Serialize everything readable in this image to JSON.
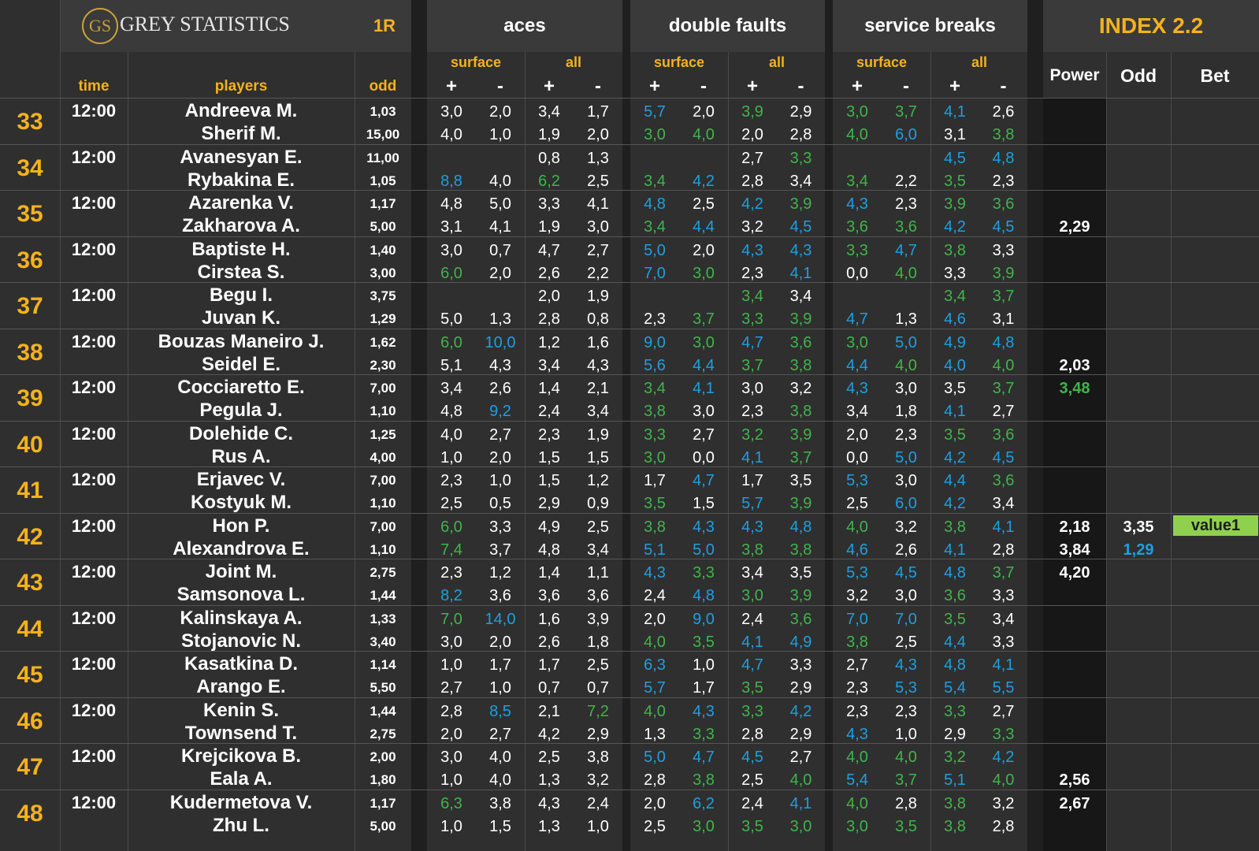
{
  "header": {
    "logo_text": "GS",
    "brand": "GREY STATISTICS",
    "round": "1R",
    "aces": "aces",
    "double_faults": "double faults",
    "service_breaks": "service breaks",
    "index_title": "INDEX 2.2",
    "surface": "surface",
    "all": "all",
    "plus": "+",
    "minus": "-",
    "time": "time",
    "players": "players",
    "odd": "odd",
    "power": "Power",
    "odd_col": "Odd",
    "bet": "Bet"
  },
  "colors": {
    "white": "#ffffff",
    "green": "#3fb54a",
    "blue": "#1e9fe0",
    "gold": "#f5b21b",
    "badge": "#8fd14f"
  },
  "matches": [
    {
      "num": "33",
      "time": "12:00",
      "p1": {
        "name": "Andreeva M.",
        "odd": "1,03",
        "stats": [
          "3,0",
          "2,0",
          "3,4",
          "1,7",
          "5,7",
          "2,0",
          "3,9",
          "2,9",
          "3,0",
          "3,7",
          "4,1",
          "2,6"
        ],
        "colors": [
          "w",
          "w",
          "w",
          "w",
          "b",
          "w",
          "g",
          "w",
          "g",
          "g",
          "b",
          "w"
        ],
        "power": "",
        "odd2": "",
        "bet": ""
      },
      "p2": {
        "name": "Sherif M.",
        "odd": "15,00",
        "stats": [
          "4,0",
          "1,0",
          "1,9",
          "2,0",
          "3,0",
          "4,0",
          "2,0",
          "2,8",
          "4,0",
          "6,0",
          "3,1",
          "3,8"
        ],
        "colors": [
          "w",
          "w",
          "w",
          "w",
          "g",
          "g",
          "w",
          "w",
          "g",
          "b",
          "w",
          "g"
        ],
        "power": "",
        "odd2": ""
      }
    },
    {
      "num": "34",
      "time": "12:00",
      "p1": {
        "name": "Avanesyan E.",
        "odd": "11,00",
        "stats": [
          "",
          "",
          "0,8",
          "1,3",
          "",
          "",
          "2,7",
          "3,3",
          "",
          "",
          "4,5",
          "4,8"
        ],
        "colors": [
          "w",
          "w",
          "w",
          "w",
          "w",
          "w",
          "w",
          "g",
          "w",
          "w",
          "b",
          "b"
        ],
        "power": "",
        "odd2": "",
        "bet": ""
      },
      "p2": {
        "name": "Rybakina E.",
        "odd": "1,05",
        "stats": [
          "8,8",
          "4,0",
          "6,2",
          "2,5",
          "3,4",
          "4,2",
          "2,8",
          "3,4",
          "3,4",
          "2,2",
          "3,5",
          "2,3"
        ],
        "colors": [
          "b",
          "w",
          "g",
          "w",
          "g",
          "b",
          "w",
          "w",
          "g",
          "w",
          "g",
          "w"
        ],
        "power": "",
        "odd2": ""
      }
    },
    {
      "num": "35",
      "time": "12:00",
      "p1": {
        "name": "Azarenka V.",
        "odd": "1,17",
        "stats": [
          "4,8",
          "5,0",
          "3,3",
          "4,1",
          "4,8",
          "2,5",
          "4,2",
          "3,9",
          "4,3",
          "2,3",
          "3,9",
          "3,6"
        ],
        "colors": [
          "w",
          "w",
          "w",
          "w",
          "b",
          "w",
          "b",
          "g",
          "b",
          "w",
          "g",
          "g"
        ],
        "power": "",
        "odd2": "",
        "bet": ""
      },
      "p2": {
        "name": "Zakharova A.",
        "odd": "5,00",
        "stats": [
          "3,1",
          "4,1",
          "1,9",
          "3,0",
          "3,4",
          "4,4",
          "3,2",
          "4,5",
          "3,6",
          "3,6",
          "4,2",
          "4,5"
        ],
        "colors": [
          "w",
          "w",
          "w",
          "w",
          "g",
          "b",
          "w",
          "b",
          "g",
          "g",
          "b",
          "b"
        ],
        "power": "2,29",
        "odd2": ""
      }
    },
    {
      "num": "36",
      "time": "12:00",
      "p1": {
        "name": "Baptiste H.",
        "odd": "1,40",
        "stats": [
          "3,0",
          "0,7",
          "4,7",
          "2,7",
          "5,0",
          "2,0",
          "4,3",
          "4,3",
          "3,3",
          "4,7",
          "3,8",
          "3,3"
        ],
        "colors": [
          "w",
          "w",
          "w",
          "w",
          "b",
          "w",
          "b",
          "b",
          "g",
          "b",
          "g",
          "w"
        ],
        "power": "",
        "odd2": "",
        "bet": ""
      },
      "p2": {
        "name": "Cirstea S.",
        "odd": "3,00",
        "stats": [
          "6,0",
          "2,0",
          "2,6",
          "2,2",
          "7,0",
          "3,0",
          "2,3",
          "4,1",
          "0,0",
          "4,0",
          "3,3",
          "3,9"
        ],
        "colors": [
          "g",
          "w",
          "w",
          "w",
          "b",
          "g",
          "w",
          "b",
          "w",
          "g",
          "w",
          "g"
        ],
        "power": "",
        "odd2": ""
      }
    },
    {
      "num": "37",
      "time": "12:00",
      "p1": {
        "name": "Begu I.",
        "odd": "3,75",
        "stats": [
          "",
          "",
          "2,0",
          "1,9",
          "",
          "",
          "3,4",
          "3,4",
          "",
          "",
          "3,4",
          "3,7"
        ],
        "colors": [
          "w",
          "w",
          "w",
          "w",
          "w",
          "w",
          "g",
          "w",
          "w",
          "w",
          "g",
          "g"
        ],
        "power": "",
        "odd2": "",
        "bet": ""
      },
      "p2": {
        "name": "Juvan K.",
        "odd": "1,29",
        "stats": [
          "5,0",
          "1,3",
          "2,8",
          "0,8",
          "2,3",
          "3,7",
          "3,3",
          "3,9",
          "4,7",
          "1,3",
          "4,6",
          "3,1"
        ],
        "colors": [
          "w",
          "w",
          "w",
          "w",
          "w",
          "g",
          "g",
          "g",
          "b",
          "w",
          "b",
          "w"
        ],
        "power": "",
        "odd2": ""
      }
    },
    {
      "num": "38",
      "time": "12:00",
      "p1": {
        "name": "Bouzas Maneiro J.",
        "odd": "1,62",
        "stats": [
          "6,0",
          "10,0",
          "1,2",
          "1,6",
          "9,0",
          "3,0",
          "4,7",
          "3,6",
          "3,0",
          "5,0",
          "4,9",
          "4,8"
        ],
        "colors": [
          "g",
          "b",
          "w",
          "w",
          "b",
          "g",
          "b",
          "g",
          "g",
          "b",
          "b",
          "b"
        ],
        "power": "",
        "odd2": "",
        "bet": ""
      },
      "p2": {
        "name": "Seidel E.",
        "odd": "2,30",
        "stats": [
          "5,1",
          "4,3",
          "3,4",
          "4,3",
          "5,6",
          "4,4",
          "3,7",
          "3,8",
          "4,4",
          "4,0",
          "4,0",
          "4,0"
        ],
        "colors": [
          "w",
          "w",
          "w",
          "w",
          "b",
          "b",
          "g",
          "g",
          "b",
          "g",
          "b",
          "g"
        ],
        "power": "2,03",
        "odd2": ""
      }
    },
    {
      "num": "39",
      "time": "12:00",
      "p1": {
        "name": "Cocciaretto E.",
        "odd": "7,00",
        "stats": [
          "3,4",
          "2,6",
          "1,4",
          "2,1",
          "3,4",
          "4,1",
          "3,0",
          "3,2",
          "4,3",
          "3,0",
          "3,5",
          "3,7"
        ],
        "colors": [
          "w",
          "w",
          "w",
          "w",
          "g",
          "b",
          "w",
          "w",
          "b",
          "w",
          "w",
          "g"
        ],
        "power": "3,48",
        "odd2": "",
        "bet": ""
      },
      "p2": {
        "name": "Pegula J.",
        "odd": "1,10",
        "stats": [
          "4,8",
          "9,2",
          "2,4",
          "3,4",
          "3,8",
          "3,0",
          "2,3",
          "3,8",
          "3,4",
          "1,8",
          "4,1",
          "2,7"
        ],
        "colors": [
          "w",
          "b",
          "w",
          "w",
          "g",
          "w",
          "w",
          "g",
          "w",
          "w",
          "b",
          "w"
        ],
        "power": "",
        "odd2": ""
      }
    },
    {
      "num": "40",
      "time": "12:00",
      "p1": {
        "name": "Dolehide C.",
        "odd": "1,25",
        "stats": [
          "4,0",
          "2,7",
          "2,3",
          "1,9",
          "3,3",
          "2,7",
          "3,2",
          "3,9",
          "2,0",
          "2,3",
          "3,5",
          "3,6"
        ],
        "colors": [
          "w",
          "w",
          "w",
          "w",
          "g",
          "w",
          "g",
          "g",
          "w",
          "w",
          "g",
          "g"
        ],
        "power": "",
        "odd2": "",
        "bet": ""
      },
      "p2": {
        "name": "Rus A.",
        "odd": "4,00",
        "stats": [
          "1,0",
          "2,0",
          "1,5",
          "1,5",
          "3,0",
          "0,0",
          "4,1",
          "3,7",
          "0,0",
          "5,0",
          "4,2",
          "4,5"
        ],
        "colors": [
          "w",
          "w",
          "w",
          "w",
          "g",
          "w",
          "b",
          "g",
          "w",
          "b",
          "b",
          "b"
        ],
        "power": "",
        "odd2": ""
      }
    },
    {
      "num": "41",
      "time": "12:00",
      "p1": {
        "name": "Erjavec V.",
        "odd": "7,00",
        "stats": [
          "2,3",
          "1,0",
          "1,5",
          "1,2",
          "1,7",
          "4,7",
          "1,7",
          "3,5",
          "5,3",
          "3,0",
          "4,4",
          "3,6"
        ],
        "colors": [
          "w",
          "w",
          "w",
          "w",
          "w",
          "b",
          "w",
          "w",
          "b",
          "w",
          "b",
          "g"
        ],
        "power": "",
        "odd2": "",
        "bet": ""
      },
      "p2": {
        "name": "Kostyuk M.",
        "odd": "1,10",
        "stats": [
          "2,5",
          "0,5",
          "2,9",
          "0,9",
          "3,5",
          "1,5",
          "5,7",
          "3,9",
          "2,5",
          "6,0",
          "4,2",
          "3,4"
        ],
        "colors": [
          "w",
          "w",
          "w",
          "w",
          "g",
          "w",
          "b",
          "g",
          "w",
          "b",
          "b",
          "w"
        ],
        "power": "",
        "odd2": ""
      }
    },
    {
      "num": "42",
      "time": "12:00",
      "p1": {
        "name": "Hon P.",
        "odd": "7,00",
        "stats": [
          "6,0",
          "3,3",
          "4,9",
          "2,5",
          "3,8",
          "4,3",
          "4,3",
          "4,8",
          "4,0",
          "3,2",
          "3,8",
          "4,1"
        ],
        "colors": [
          "g",
          "w",
          "w",
          "w",
          "g",
          "b",
          "b",
          "b",
          "g",
          "w",
          "g",
          "b"
        ],
        "power": "2,18",
        "odd2": "3,35",
        "bet": "value1"
      },
      "p2": {
        "name": "Alexandrova E.",
        "odd": "1,10",
        "stats": [
          "7,4",
          "3,7",
          "4,8",
          "3,4",
          "5,1",
          "5,0",
          "3,8",
          "3,8",
          "4,6",
          "2,6",
          "4,1",
          "2,8"
        ],
        "colors": [
          "g",
          "w",
          "w",
          "w",
          "b",
          "b",
          "g",
          "g",
          "b",
          "w",
          "b",
          "w"
        ],
        "power": "3,84",
        "odd2": "1,29"
      }
    },
    {
      "num": "43",
      "time": "12:00",
      "p1": {
        "name": "Joint M.",
        "odd": "2,75",
        "stats": [
          "2,3",
          "1,2",
          "1,4",
          "1,1",
          "4,3",
          "3,3",
          "3,4",
          "3,5",
          "5,3",
          "4,5",
          "4,8",
          "3,7"
        ],
        "colors": [
          "w",
          "w",
          "w",
          "w",
          "b",
          "g",
          "w",
          "w",
          "b",
          "b",
          "b",
          "g"
        ],
        "power": "4,20",
        "odd2": "",
        "bet": ""
      },
      "p2": {
        "name": "Samsonova L.",
        "odd": "1,44",
        "stats": [
          "8,2",
          "3,6",
          "3,6",
          "3,6",
          "2,4",
          "4,8",
          "3,0",
          "3,9",
          "3,2",
          "3,0",
          "3,6",
          "3,3"
        ],
        "colors": [
          "b",
          "w",
          "w",
          "w",
          "w",
          "b",
          "g",
          "g",
          "w",
          "w",
          "g",
          "w"
        ],
        "power": "",
        "odd2": ""
      }
    },
    {
      "num": "44",
      "time": "12:00",
      "p1": {
        "name": "Kalinskaya A.",
        "odd": "1,33",
        "stats": [
          "7,0",
          "14,0",
          "1,6",
          "3,9",
          "2,0",
          "9,0",
          "2,4",
          "3,6",
          "7,0",
          "7,0",
          "3,5",
          "3,4"
        ],
        "colors": [
          "g",
          "b",
          "w",
          "w",
          "w",
          "b",
          "w",
          "g",
          "b",
          "b",
          "g",
          "w"
        ],
        "power": "",
        "odd2": "",
        "bet": ""
      },
      "p2": {
        "name": "Stojanovic N.",
        "odd": "3,40",
        "stats": [
          "3,0",
          "2,0",
          "2,6",
          "1,8",
          "4,0",
          "3,5",
          "4,1",
          "4,9",
          "3,8",
          "2,5",
          "4,4",
          "3,3"
        ],
        "colors": [
          "w",
          "w",
          "w",
          "w",
          "g",
          "g",
          "b",
          "b",
          "g",
          "w",
          "b",
          "w"
        ],
        "power": "",
        "odd2": ""
      }
    },
    {
      "num": "45",
      "time": "12:00",
      "p1": {
        "name": "Kasatkina D.",
        "odd": "1,14",
        "stats": [
          "1,0",
          "1,7",
          "1,7",
          "2,5",
          "6,3",
          "1,0",
          "4,7",
          "3,3",
          "2,7",
          "4,3",
          "4,8",
          "4,1"
        ],
        "colors": [
          "w",
          "w",
          "w",
          "w",
          "b",
          "w",
          "b",
          "w",
          "w",
          "b",
          "b",
          "b"
        ],
        "power": "",
        "odd2": "",
        "bet": ""
      },
      "p2": {
        "name": "Arango E.",
        "odd": "5,50",
        "stats": [
          "2,7",
          "1,0",
          "0,7",
          "0,7",
          "5,7",
          "1,7",
          "3,5",
          "2,9",
          "2,3",
          "5,3",
          "5,4",
          "5,5"
        ],
        "colors": [
          "w",
          "w",
          "w",
          "w",
          "b",
          "w",
          "g",
          "w",
          "w",
          "b",
          "b",
          "b"
        ],
        "power": "",
        "odd2": ""
      }
    },
    {
      "num": "46",
      "time": "12:00",
      "p1": {
        "name": "Kenin S.",
        "odd": "1,44",
        "stats": [
          "2,8",
          "8,5",
          "2,1",
          "7,2",
          "4,0",
          "4,3",
          "3,3",
          "4,2",
          "2,3",
          "2,3",
          "3,3",
          "2,7"
        ],
        "colors": [
          "w",
          "b",
          "w",
          "g",
          "g",
          "b",
          "g",
          "b",
          "w",
          "w",
          "g",
          "w"
        ],
        "power": "",
        "odd2": "",
        "bet": ""
      },
      "p2": {
        "name": "Townsend T.",
        "odd": "2,75",
        "stats": [
          "2,0",
          "2,7",
          "4,2",
          "2,9",
          "1,3",
          "3,3",
          "2,8",
          "2,9",
          "4,3",
          "1,0",
          "2,9",
          "3,3"
        ],
        "colors": [
          "w",
          "w",
          "w",
          "w",
          "w",
          "g",
          "w",
          "w",
          "b",
          "w",
          "w",
          "g"
        ],
        "power": "",
        "odd2": ""
      }
    },
    {
      "num": "47",
      "time": "12:00",
      "p1": {
        "name": "Krejcikova B.",
        "odd": "2,00",
        "stats": [
          "3,0",
          "4,0",
          "2,5",
          "3,8",
          "5,0",
          "4,7",
          "4,5",
          "2,7",
          "4,0",
          "4,0",
          "3,2",
          "4,2"
        ],
        "colors": [
          "w",
          "w",
          "w",
          "w",
          "b",
          "b",
          "b",
          "w",
          "g",
          "g",
          "g",
          "b"
        ],
        "power": "",
        "odd2": "",
        "bet": ""
      },
      "p2": {
        "name": "Eala A.",
        "odd": "1,80",
        "stats": [
          "1,0",
          "4,0",
          "1,3",
          "3,2",
          "2,8",
          "3,8",
          "2,5",
          "4,0",
          "5,4",
          "3,7",
          "5,1",
          "4,0"
        ],
        "colors": [
          "w",
          "w",
          "w",
          "w",
          "w",
          "g",
          "w",
          "g",
          "b",
          "g",
          "b",
          "g"
        ],
        "power": "2,56",
        "odd2": ""
      }
    },
    {
      "num": "48",
      "time": "12:00",
      "p1": {
        "name": "Kudermetova V.",
        "odd": "1,17",
        "stats": [
          "6,3",
          "3,8",
          "4,3",
          "2,4",
          "2,0",
          "6,2",
          "2,4",
          "4,1",
          "4,0",
          "2,8",
          "3,8",
          "3,2"
        ],
        "colors": [
          "g",
          "w",
          "w",
          "w",
          "w",
          "b",
          "w",
          "b",
          "g",
          "w",
          "g",
          "w"
        ],
        "power": "2,67",
        "odd2": "",
        "bet": ""
      },
      "p2": {
        "name": "Zhu L.",
        "odd": "5,00",
        "stats": [
          "1,0",
          "1,5",
          "1,3",
          "1,0",
          "2,5",
          "3,0",
          "3,5",
          "3,0",
          "3,0",
          "3,5",
          "3,8",
          "2,8"
        ],
        "colors": [
          "w",
          "w",
          "w",
          "w",
          "w",
          "g",
          "g",
          "g",
          "g",
          "g",
          "g",
          "w"
        ],
        "power": "",
        "odd2": ""
      }
    }
  ]
}
